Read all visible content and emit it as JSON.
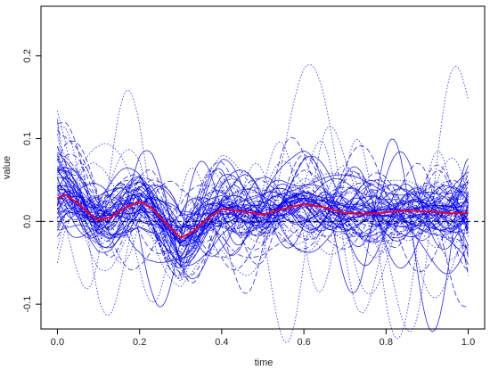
{
  "chart_data": {
    "type": "line",
    "title": "",
    "xlabel": "time",
    "ylabel": "value",
    "xlim": [
      -0.04,
      1.04
    ],
    "ylim": [
      -0.13,
      0.26
    ],
    "xticks": [
      0.0,
      0.2,
      0.4,
      0.6,
      0.8,
      1.0
    ],
    "xtick_labels": [
      "0.0",
      "0.2",
      "0.4",
      "0.6",
      "0.8",
      "1.0"
    ],
    "yticks": [
      -0.1,
      0.0,
      0.1,
      0.2
    ],
    "ytick_labels": [
      "-0.1",
      "0.0",
      "0.1",
      "0.2"
    ],
    "grid": false,
    "legend": "none",
    "reference_line": {
      "y": 0.0,
      "style": "dashed",
      "color": "#000000"
    },
    "series_style": {
      "color": "#0000ff",
      "dash": "mixed solid/dashed/dotted"
    },
    "mean_style": {
      "color": "#ff0000"
    },
    "curve_count": 70,
    "mean_curve": {
      "x": [
        0.0,
        0.02,
        0.05,
        0.08,
        0.1,
        0.13,
        0.16,
        0.2,
        0.23,
        0.27,
        0.3,
        0.33,
        0.37,
        0.4,
        0.45,
        0.5,
        0.55,
        0.6,
        0.65,
        0.7,
        0.75,
        0.8,
        0.85,
        0.9,
        0.95,
        1.0
      ],
      "y": [
        0.028,
        0.032,
        0.022,
        0.008,
        0.002,
        0.005,
        0.015,
        0.024,
        0.016,
        -0.005,
        -0.02,
        -0.012,
        0.005,
        0.015,
        0.012,
        0.008,
        0.015,
        0.021,
        0.017,
        0.01,
        0.009,
        0.011,
        0.013,
        0.012,
        0.01,
        0.01
      ]
    }
  }
}
